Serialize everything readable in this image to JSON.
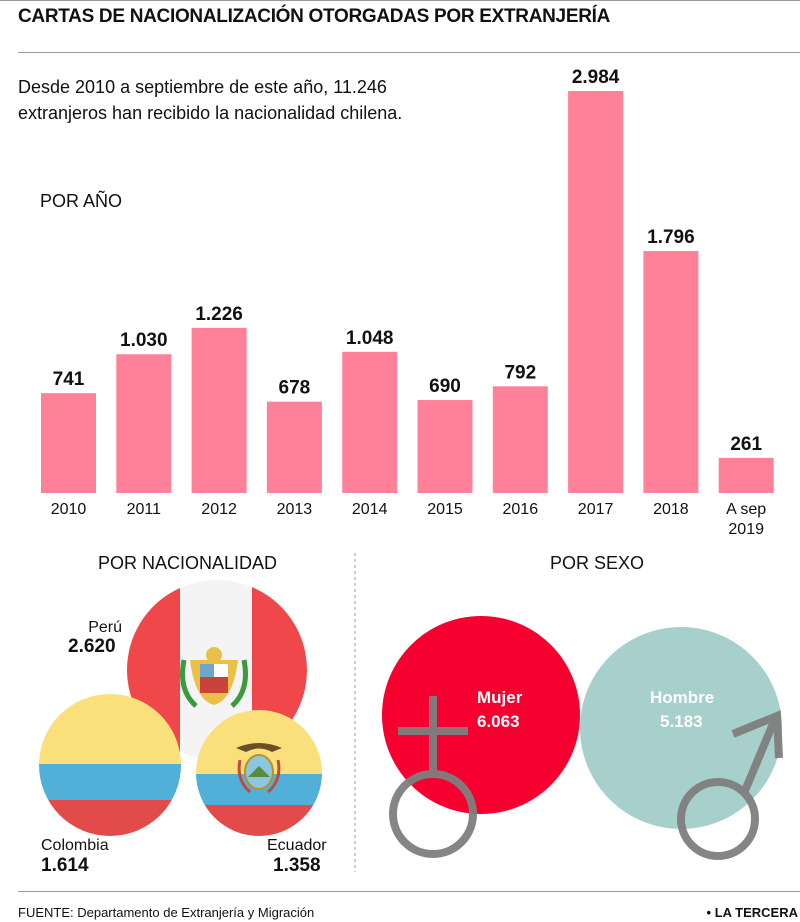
{
  "title": "CARTAS DE NACIONALIZACIÓN OTORGADAS POR EXTRANJERÍA",
  "intro": "Desde 2010 a septiembre de este año, 11.246 extranjeros han recibido la nacionalidad chilena.",
  "section_year": "POR AÑO",
  "section_nationality": "POR NACIONALIDAD",
  "section_sex": "POR SEXO",
  "chart_data": {
    "type": "bar",
    "categories": [
      "2010",
      "2011",
      "2012",
      "2013",
      "2014",
      "2015",
      "2016",
      "2017",
      "2018",
      "A sep 2019"
    ],
    "values": [
      741,
      1030,
      1226,
      678,
      1048,
      690,
      792,
      2984,
      1796,
      261
    ],
    "value_labels": [
      "741",
      "1.030",
      "1.226",
      "678",
      "1.048",
      "690",
      "792",
      "2.984",
      "1.796",
      "261"
    ],
    "bar_color": "#ff8199"
  },
  "nationality": {
    "peru": {
      "name": "Perú",
      "value": "2.620"
    },
    "colombia": {
      "name": "Colombia",
      "value": "1.614"
    },
    "ecuador": {
      "name": "Ecuador",
      "value": "1.358"
    }
  },
  "sex": {
    "female": {
      "name": "Mujer",
      "value": "6.063",
      "color": "#f5002f"
    },
    "male": {
      "name": "Hombre",
      "value": "5.183",
      "color": "#a7cfcc"
    }
  },
  "source": "FUENTE: Departamento de Extranjería y Migración",
  "brand": "• LA TERCERA"
}
